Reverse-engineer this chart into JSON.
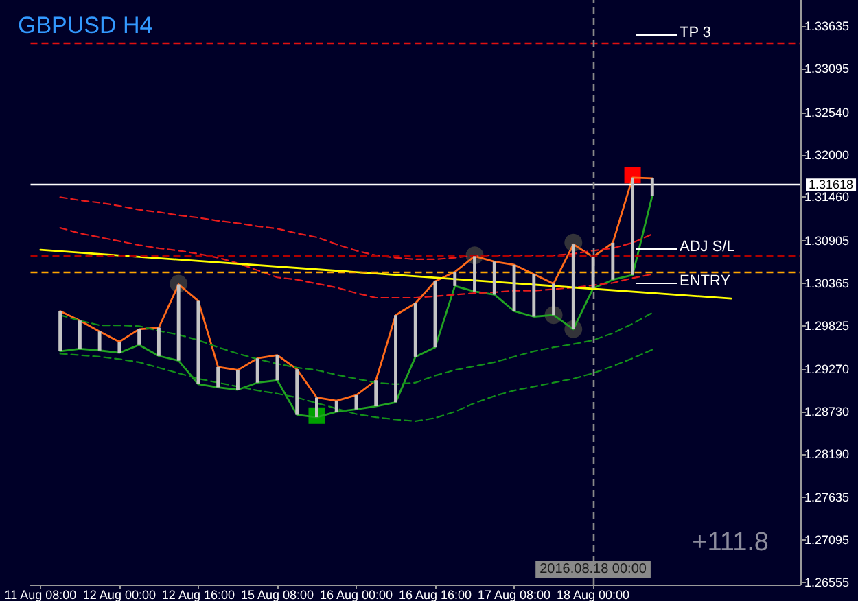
{
  "chart_data": {
    "type": "line",
    "title": "GBPUSD H4",
    "annotations": [
      "+111.8"
    ],
    "categories": [
      "11 Aug 08:00",
      null,
      null,
      null,
      "12 Aug 00:00",
      null,
      null,
      null,
      "12 Aug 16:00",
      null,
      null,
      null,
      "15 Aug 08:00",
      null,
      null,
      null,
      "16 Aug 00:00",
      null,
      null,
      null,
      "16 Aug 16:00",
      null,
      null,
      null,
      "17 Aug 08:00",
      null,
      null,
      null,
      "18 Aug 00:00",
      null,
      null,
      null,
      null,
      null,
      null,
      null,
      null,
      null,
      null
    ],
    "ylim": [
      1.2653,
      1.3397
    ],
    "yticks": [
      1.26555,
      1.27095,
      1.27635,
      {
        "value": 1.2819,
        "label": "1.28190"
      },
      {
        "value": 1.2873,
        "label": "1.28730"
      },
      {
        "value": 1.2927,
        "label": "1.29270"
      },
      1.29825,
      1.30365,
      1.30905,
      {
        "value": 1.3146,
        "label": "1.31460"
      },
      {
        "value": 1.32,
        "label": "1.32000"
      },
      {
        "value": 1.3254,
        "label": "1.32540"
      },
      1.33095,
      1.33635
    ],
    "series": [
      {
        "type": "bar",
        "color": "#c4c4c4",
        "base": [
          null,
          1.295,
          1.2953,
          1.2951,
          1.2948,
          1.2958,
          1.2944,
          1.2938,
          1.2908,
          1.2904,
          1.2901,
          1.291,
          1.2913,
          1.2869,
          1.2866,
          1.2873,
          1.2876,
          1.288,
          1.2885,
          1.2943,
          1.2955,
          1.3033,
          1.3026,
          1.3022,
          1.3001,
          1.2994,
          1.2996,
          1.2978,
          1.303,
          1.3041,
          1.3047,
          1.3148,
          null,
          null,
          null,
          null,
          null,
          null,
          null
        ],
        "values": [
          null,
          0.0051,
          0.0036,
          0.0024,
          0.0014,
          0.002,
          0.0036,
          0.0097,
          0.0106,
          0.0026,
          0.0025,
          0.0031,
          0.0032,
          0.0058,
          0.0025,
          0.0014,
          0.0018,
          0.0033,
          0.0111,
          0.0068,
          0.0084,
          0.0018,
          0.0045,
          0.0042,
          0.0059,
          0.0054,
          0.004,
          0.0108,
          0.004,
          0.0047,
          0.0124,
          0.0022,
          null,
          null,
          null,
          null,
          null,
          null,
          null
        ]
      },
      {
        "color": "#ff6a1a",
        "marker": "none",
        "line_style": "solid",
        "values": [
          null,
          1.3001,
          1.2989,
          1.2975,
          1.2962,
          1.2978,
          1.298,
          1.3035,
          1.3014,
          1.293,
          1.2926,
          1.2941,
          1.2945,
          1.2927,
          1.2891,
          1.2887,
          1.2894,
          1.2913,
          1.2996,
          1.3011,
          1.3039,
          1.3051,
          1.3071,
          1.3064,
          1.306,
          1.3048,
          1.3036,
          1.3086,
          1.307,
          1.3088,
          1.3171,
          1.317,
          null,
          null,
          null,
          null,
          null,
          null,
          null
        ]
      },
      {
        "color": "#22a322",
        "marker": "none",
        "line_style": "solid",
        "values": [
          null,
          1.295,
          1.2953,
          1.2951,
          1.2948,
          1.2958,
          1.2944,
          1.2938,
          1.2908,
          1.2904,
          1.2901,
          1.291,
          1.2913,
          1.2869,
          1.2866,
          1.2873,
          1.2876,
          1.288,
          1.2885,
          1.2943,
          1.2955,
          1.3033,
          1.3026,
          1.3022,
          1.3001,
          1.2994,
          1.2996,
          1.2978,
          1.303,
          1.3041,
          1.3047,
          1.3148,
          null,
          null,
          null,
          null,
          null,
          null,
          null
        ]
      },
      {
        "color": "#e81c1c",
        "marker": "none",
        "line_style": "dashed",
        "values": [
          null,
          1.3146,
          1.3142,
          1.3139,
          1.3135,
          1.313,
          1.3127,
          1.3123,
          1.312,
          1.3116,
          1.3113,
          1.3109,
          1.3106,
          1.31,
          1.3095,
          1.3086,
          1.3078,
          1.3072,
          1.3069,
          1.3067,
          1.3067,
          1.3069,
          1.3072,
          1.3072,
          1.3072,
          1.3072,
          1.3072,
          1.3074,
          1.3078,
          1.3081,
          1.3088,
          1.3099,
          null,
          null,
          null,
          null,
          null,
          null,
          null
        ]
      },
      {
        "color": "#e81c1c",
        "marker": "none",
        "line_style": "dashed",
        "values": [
          null,
          1.3107,
          1.31,
          1.3095,
          1.309,
          1.3085,
          1.3081,
          1.3078,
          1.3074,
          1.3069,
          1.3062,
          1.3053,
          1.3044,
          1.3041,
          1.3036,
          1.3031,
          1.3024,
          1.3018,
          1.3018,
          1.3018,
          1.302,
          1.3022,
          1.3024,
          1.3025,
          1.3027,
          1.3027,
          1.3029,
          1.3031,
          1.3034,
          1.3037,
          1.3043,
          1.3048,
          null,
          null,
          null,
          null,
          null,
          null,
          null
        ]
      },
      {
        "color": "#13901a",
        "marker": "none",
        "line_style": "dashed",
        "values": [
          null,
          1.2996,
          1.2989,
          1.2983,
          1.2983,
          1.2982,
          1.2976,
          1.2971,
          1.2964,
          1.2955,
          1.2947,
          1.294,
          1.2934,
          1.2929,
          1.2926,
          1.292,
          1.2915,
          1.291,
          1.2908,
          1.291,
          1.2919,
          1.2926,
          1.2931,
          1.2936,
          1.2943,
          1.295,
          1.2955,
          1.2959,
          1.2964,
          1.2973,
          1.2985,
          1.2999,
          null,
          null,
          null,
          null,
          null,
          null,
          null
        ]
      },
      {
        "color": "#13901a",
        "marker": "none",
        "line_style": "dashed",
        "values": [
          null,
          1.2947,
          1.2945,
          1.2943,
          1.294,
          1.2936,
          1.2929,
          1.2922,
          1.2915,
          1.291,
          1.2905,
          1.29,
          1.2896,
          1.2891,
          1.2884,
          1.2877,
          1.287,
          1.2866,
          1.2863,
          1.2861,
          1.2865,
          1.2873,
          1.2884,
          1.2893,
          1.29,
          1.2905,
          1.291,
          1.2915,
          1.2922,
          1.2931,
          1.2941,
          1.2952,
          null,
          null,
          null,
          null,
          null,
          null,
          null
        ]
      },
      {
        "color": "#ffff00",
        "marker": "none",
        "line_style": "solid",
        "values": [
          1.3079,
          null,
          null,
          null,
          null,
          null,
          null,
          null,
          null,
          null,
          null,
          null,
          null,
          null,
          null,
          null,
          null,
          null,
          null,
          null,
          null,
          null,
          null,
          null,
          null,
          null,
          null,
          null,
          null,
          null,
          null,
          null,
          null,
          null,
          null,
          1.3017,
          null,
          null,
          null
        ]
      },
      {
        "type": "scatter",
        "color": "#3c3c3c",
        "marker": "circle",
        "values": [
          null,
          null,
          null,
          null,
          null,
          null,
          null,
          1.3036,
          null,
          null,
          null,
          null,
          null,
          null,
          null,
          null,
          null,
          null,
          null,
          null,
          null,
          null,
          1.3072,
          null,
          null,
          null,
          null,
          1.3088,
          null,
          null,
          null,
          null,
          null,
          null,
          null,
          null,
          null,
          null,
          null
        ]
      },
      {
        "type": "scatter",
        "color": "#3c3c3c",
        "marker": "circle",
        "values": [
          null,
          null,
          null,
          null,
          null,
          null,
          null,
          null,
          null,
          null,
          null,
          null,
          null,
          null,
          null,
          null,
          null,
          null,
          null,
          null,
          null,
          null,
          null,
          null,
          null,
          null,
          1.2996,
          1.2978,
          null,
          null,
          null,
          null,
          null,
          null,
          null,
          null,
          null,
          null,
          null
        ]
      },
      {
        "type": "scatter",
        "color": "#00a000",
        "marker": "square",
        "values": [
          null,
          null,
          null,
          null,
          null,
          null,
          null,
          null,
          null,
          null,
          null,
          null,
          null,
          null,
          1.2868,
          null,
          null,
          null,
          null,
          null,
          null,
          null,
          null,
          null,
          null,
          null,
          null,
          null,
          null,
          null,
          null,
          null,
          null,
          null,
          null,
          null,
          null,
          null,
          null
        ]
      },
      {
        "type": "scatter",
        "color": "#ff0000",
        "marker": "square",
        "values": [
          null,
          null,
          null,
          null,
          null,
          null,
          null,
          null,
          null,
          null,
          null,
          null,
          null,
          null,
          null,
          null,
          null,
          null,
          null,
          null,
          null,
          null,
          null,
          null,
          null,
          null,
          null,
          null,
          null,
          null,
          1.3174,
          null,
          null,
          null,
          null,
          null,
          null,
          null,
          null
        ]
      }
    ],
    "ref_lines": [
      {
        "axis": "y",
        "value": 1.3342,
        "label": "TP 3",
        "color": "#e01010",
        "line_style": "dashed"
      },
      {
        "axis": "y",
        "value": 1.3071,
        "label": "ADJ S/L",
        "color": "#b00000",
        "line_style": "dashed"
      },
      {
        "axis": "y",
        "value": 1.3051,
        "label": "ENTRY",
        "color": "#ffa500",
        "line_style": "dashed"
      },
      {
        "axis": "y",
        "value": 1.31618,
        "label": "1.31618",
        "color": "#ffffff",
        "line_style": "solid"
      },
      {
        "axis": "x",
        "value": "18 Aug 00:00",
        "label": "2016.08.18 00:00",
        "color": "#8a8a8a",
        "line_style": "dashed"
      }
    ]
  }
}
